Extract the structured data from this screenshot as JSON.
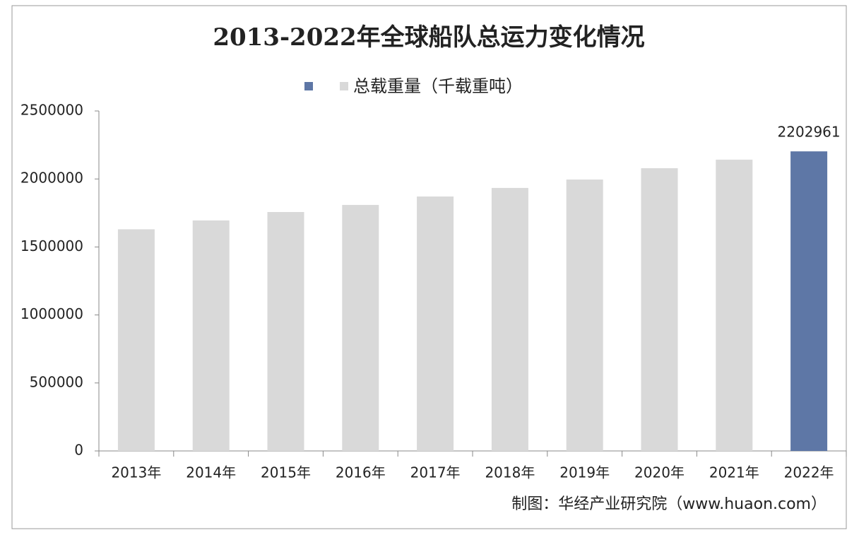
{
  "chart_data": {
    "type": "bar",
    "title": "2013-2022年全球船队总运力变化情况",
    "categories": [
      "2013年",
      "2014年",
      "2015年",
      "2016年",
      "2017年",
      "2018年",
      "2019年",
      "2020年",
      "2021年",
      "2022年"
    ],
    "series": [
      {
        "name": "总载重量（千载重吨）",
        "colors": [
          "#d9d9d9",
          "#d9d9d9",
          "#d9d9d9",
          "#d9d9d9",
          "#d9d9d9",
          "#d9d9d9",
          "#d9d9d9",
          "#d9d9d9",
          "#d9d9d9",
          "#5e77a6"
        ],
        "legend_colors": [
          "#5e77a6",
          "#d9d9d9"
        ],
        "values": [
          1630000,
          1695000,
          1757000,
          1809000,
          1871000,
          1934000,
          1996000,
          2079000,
          2142000,
          2202961
        ]
      }
    ],
    "label_last": true,
    "ylim": [
      0,
      2500000
    ],
    "yticks": [
      0,
      500000,
      1000000,
      1500000,
      2000000,
      2500000
    ],
    "grid": false,
    "source": "制图：华经产业研究院（www.huaon.com）"
  }
}
